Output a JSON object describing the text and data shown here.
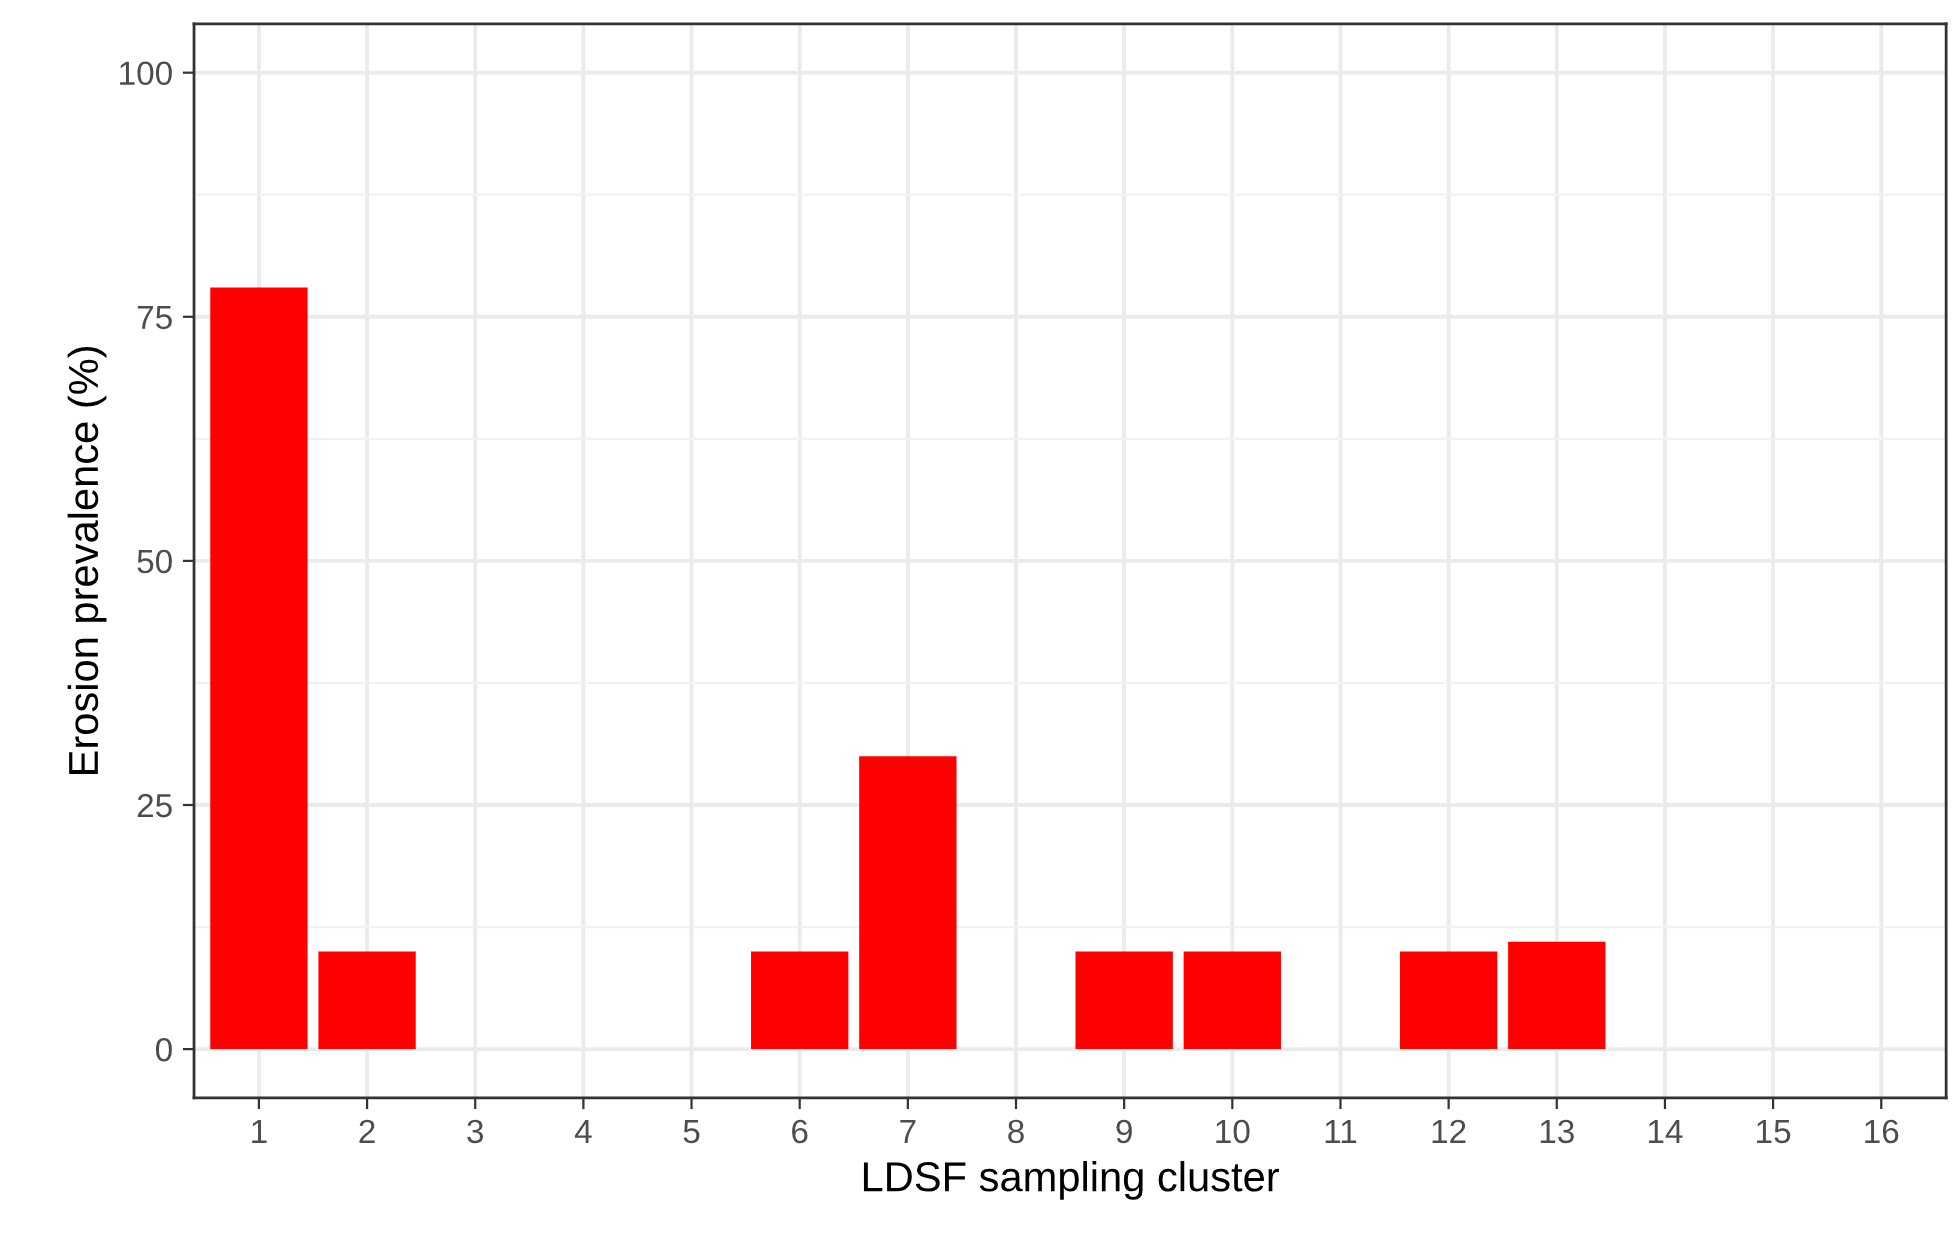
{
  "chart_data": {
    "type": "bar",
    "xlabel": "LDSF sampling cluster",
    "ylabel": "Erosion prevalence (%)",
    "categories": [
      "1",
      "2",
      "3",
      "4",
      "5",
      "6",
      "7",
      "8",
      "9",
      "10",
      "11",
      "12",
      "13",
      "14",
      "15",
      "16"
    ],
    "values": [
      78,
      10,
      0,
      0,
      0,
      10,
      30,
      0,
      10,
      10,
      0,
      10,
      11,
      0,
      0,
      0
    ],
    "color": "#ff0000",
    "ylim": [
      -5,
      105
    ],
    "yticks": [
      0,
      25,
      50,
      75,
      100
    ],
    "grid": true,
    "legend": false
  }
}
